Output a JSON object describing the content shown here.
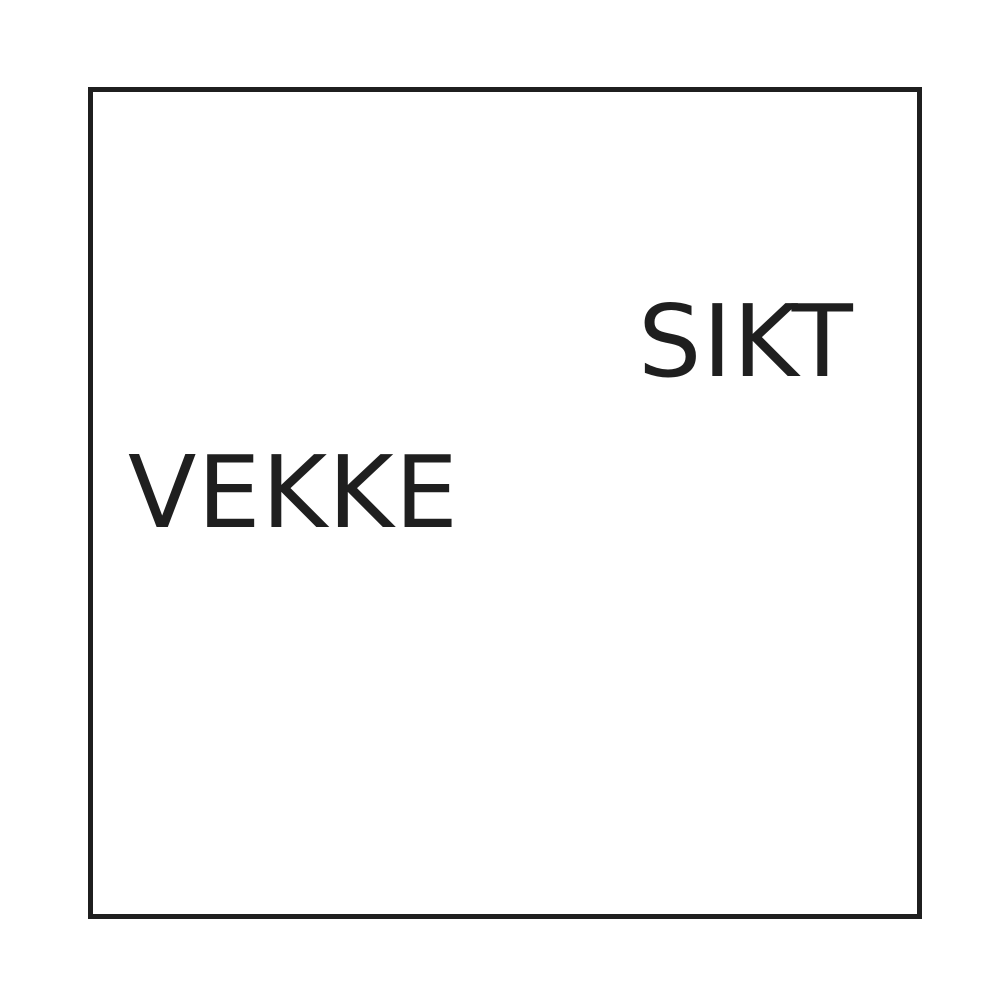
{
  "words": {
    "top_right": "SIKT",
    "left": "VEKKE"
  },
  "colors": {
    "background": "#ffffff",
    "ink": "#1f1f1f"
  }
}
